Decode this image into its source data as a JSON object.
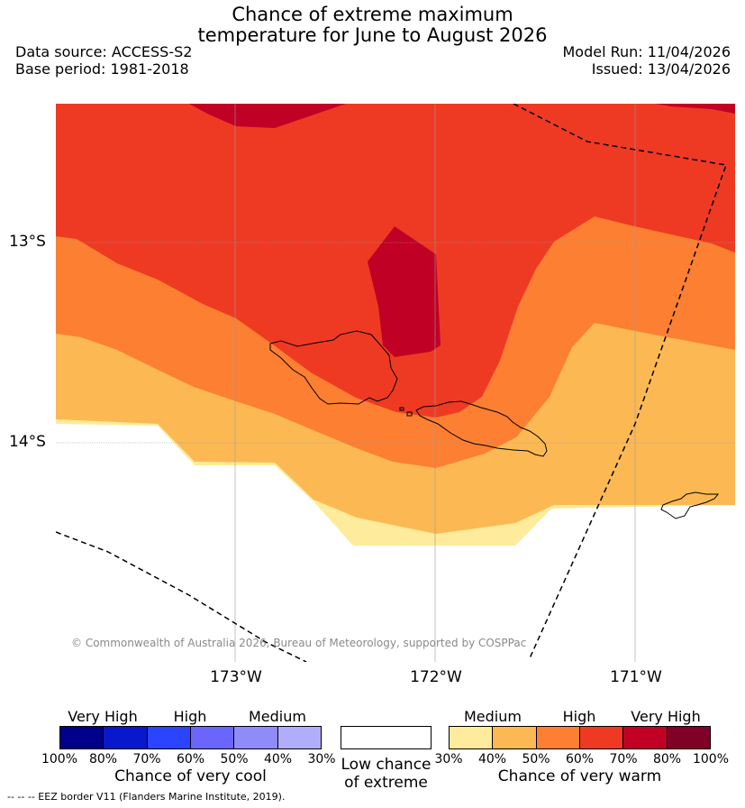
{
  "title": {
    "line1": "Chance of extreme maximum",
    "line2": "temperature for June to August 2026"
  },
  "meta": {
    "data_source": "Data source: ACCESS-S2",
    "base_period": "Base period: 1981-2018",
    "model_run": "Model Run: 11/04/2026",
    "issued": "Issued: 13/04/2026"
  },
  "map": {
    "lat_labels": [
      "13°S",
      "14°S"
    ],
    "lon_labels": [
      "173°W",
      "172°W",
      "171°W"
    ],
    "copyright": "© Commonwealth of Australia 2026, Bureau of Meteorology, supported by COSPPac",
    "colors": {
      "medium_warm": "#feeb9b",
      "warm_50": "#fcb953",
      "warm_60": "#fc7f32",
      "warm_70": "#ee3a23",
      "warm_80": "#c10026",
      "warm_90": "#800028",
      "coast": "#000000",
      "eez": "#000000",
      "grid": "#9a9a9a"
    }
  },
  "legend": {
    "cool": {
      "categories": [
        "Very High",
        "High",
        "Medium"
      ],
      "ticks": [
        "100%",
        "80%",
        "70%",
        "60%",
        "50%",
        "40%",
        "30%"
      ],
      "colors": [
        "#00008b",
        "#0818cc",
        "#2a44ff",
        "#6a66fb",
        "#8f8cfa",
        "#b0aefb"
      ],
      "title": "Chance of very cool"
    },
    "low": {
      "title_line1": "Low chance",
      "title_line2": "of extreme",
      "color": "#ffffff"
    },
    "warm": {
      "categories": [
        "Medium",
        "High",
        "Very High"
      ],
      "ticks": [
        "30%",
        "40%",
        "50%",
        "60%",
        "70%",
        "80%",
        "100%"
      ],
      "colors": [
        "#feeb9b",
        "#fcb953",
        "#fc7f32",
        "#ee3a23",
        "#c10026",
        "#800028"
      ],
      "title": "Chance of very warm"
    }
  },
  "footnote": "--  --  -- EEZ border V11 (Flanders Marine Institute, 2019)."
}
